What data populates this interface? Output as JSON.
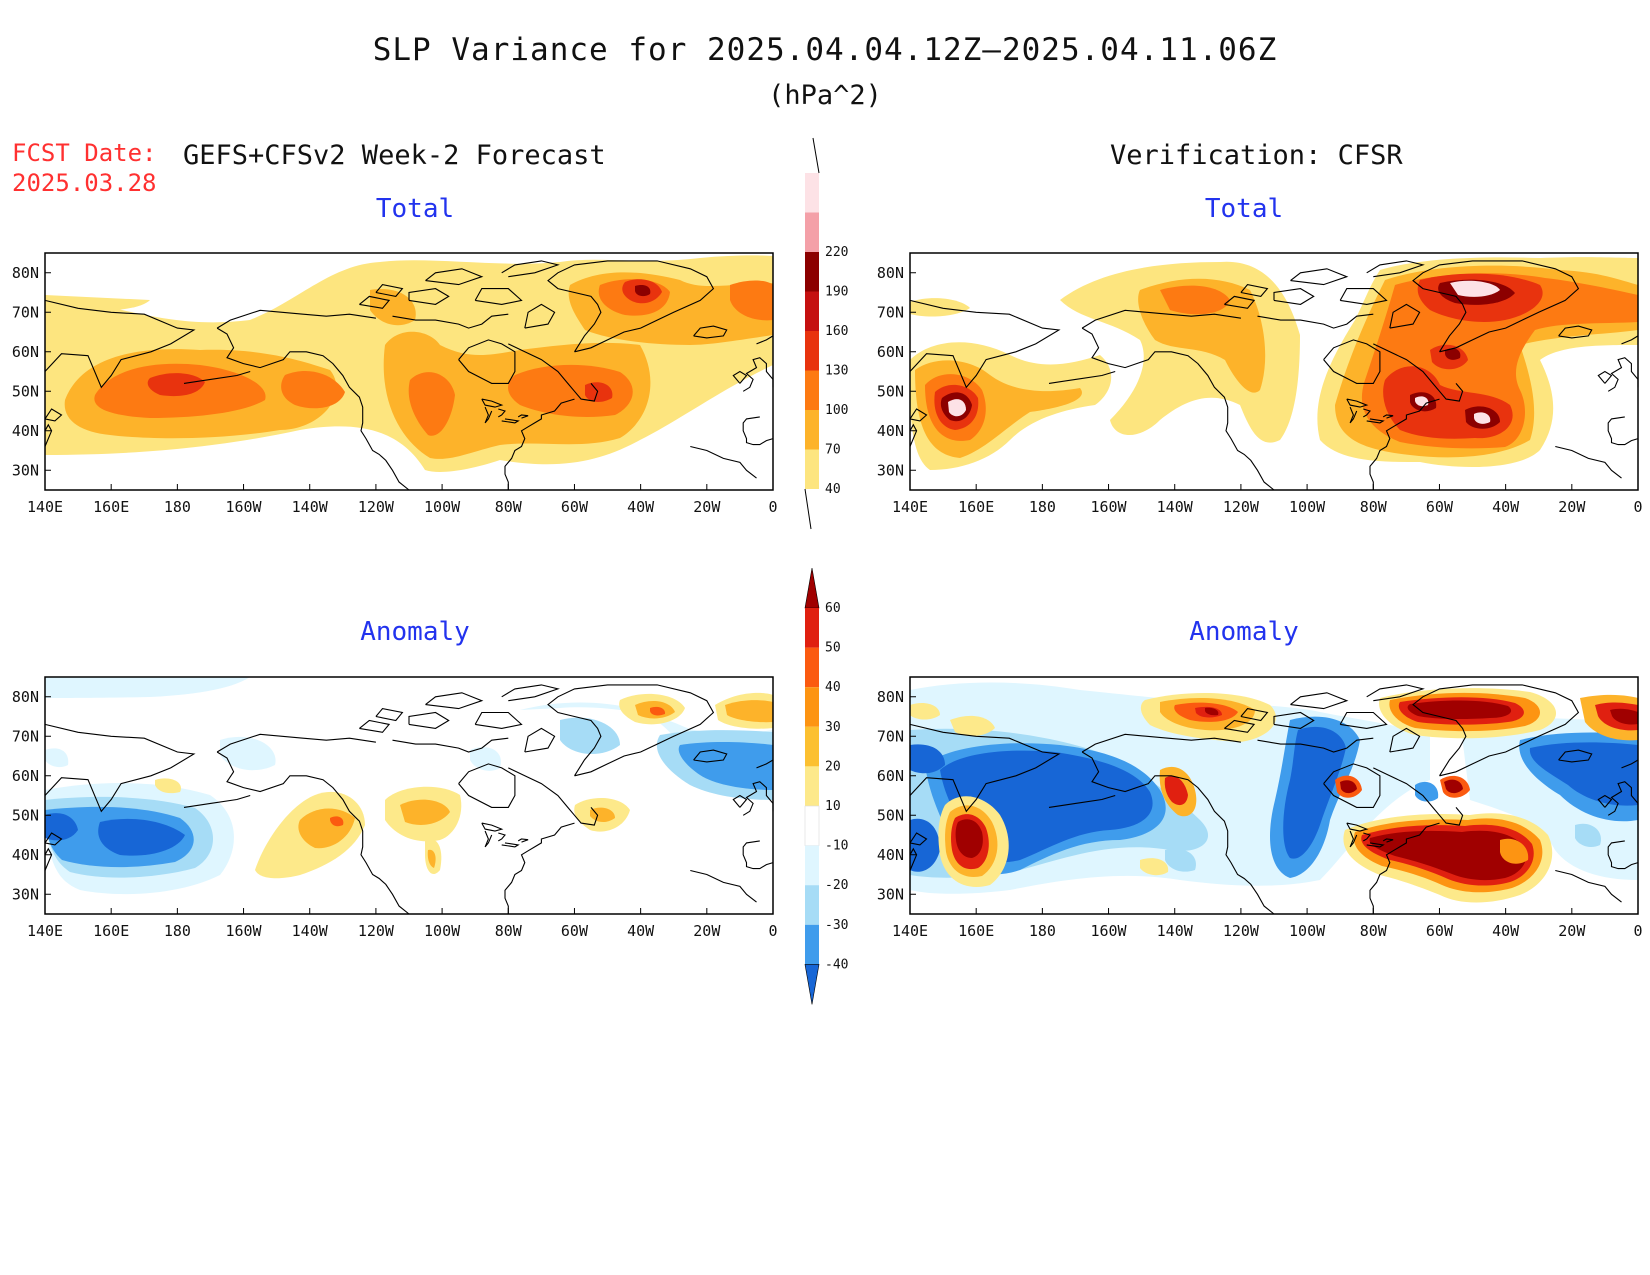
{
  "header": {
    "title": "SLP Variance for 2025.04.04.12Z–2025.04.11.06Z",
    "unit": "(hPa^2)",
    "fcst_label": "FCST Date:",
    "fcst_date": "2025.03.28",
    "left_heading": "GEFS+CFSv2 Week-2 Forecast",
    "right_heading": "Verification: CFSR"
  },
  "panels": {
    "fc_total": {
      "title": "Total"
    },
    "ver_total": {
      "title": "Total"
    },
    "fc_anom": {
      "title": "Anomaly"
    },
    "ver_anom": {
      "title": "Anomaly"
    }
  },
  "axes": {
    "lon_labels": [
      "140E",
      "160E",
      "180",
      "160W",
      "140W",
      "120W",
      "100W",
      "80W",
      "60W",
      "40W",
      "20W",
      "0"
    ],
    "lat_labels": [
      "80N",
      "70N",
      "60N",
      "50N",
      "40N",
      "30N"
    ]
  },
  "colorbars": {
    "total": {
      "levels": [
        "40",
        "70",
        "100",
        "130",
        "160",
        "190",
        "220"
      ],
      "colors": [
        "#fde57f",
        "#fdb32a",
        "#fd7a12",
        "#e8330e",
        "#c51010",
        "#8c0000",
        "#f4a0a8",
        "#fde2e6"
      ]
    },
    "anomaly": {
      "levels": [
        "60",
        "50",
        "40",
        "30",
        "20",
        "10",
        "-10",
        "-20",
        "-30",
        "-40"
      ],
      "colors": [
        "#a00000",
        "#e02010",
        "#fb5a10",
        "#fd9412",
        "#fcc030",
        "#fde98a",
        "#ffffff",
        "#dff6ff",
        "#a6dcf6",
        "#3f9cec",
        "#1766d6"
      ]
    }
  },
  "map_data": {
    "projection": "cylindrical equidistant",
    "lon_range": [
      "140E",
      "0"
    ],
    "lat_range": [
      "25N",
      "85N"
    ],
    "fc_total_blobs": [
      {
        "lon": -180,
        "lat": 53,
        "value": 120
      },
      {
        "lon": -145,
        "lat": 48,
        "value": 110
      },
      {
        "lon": -98,
        "lat": 48,
        "value": 110
      },
      {
        "lon": -55,
        "lat": 48,
        "value": 130
      },
      {
        "lon": -38,
        "lat": 75,
        "value": 175
      },
      {
        "lon": -10,
        "lat": 75,
        "value": 110
      }
    ],
    "ver_total_blobs": [
      {
        "lon": 158,
        "lat": 44,
        "value": 225
      },
      {
        "lon": -42,
        "lat": 77,
        "value": 225
      },
      {
        "lon": -55,
        "lat": 47,
        "value": 190
      },
      {
        "lon": -38,
        "lat": 45,
        "value": 225
      },
      {
        "lon": -45,
        "lat": 58,
        "value": 190
      },
      {
        "lon": -125,
        "lat": 52,
        "value": 100
      }
    ],
    "fc_anom_blobs": [
      {
        "lon": 172,
        "lat": 43,
        "value": -35
      },
      {
        "lon": -30,
        "lat": 62,
        "value": -30
      },
      {
        "lon": -138,
        "lat": 47,
        "value": 35
      },
      {
        "lon": -105,
        "lat": 50,
        "value": 25
      },
      {
        "lon": -32,
        "lat": 75,
        "value": 40
      },
      {
        "lon": -10,
        "lat": 73,
        "value": 30
      }
    ],
    "ver_anom_blobs": [
      {
        "lon": -170,
        "lat": 55,
        "value": -40
      },
      {
        "lon": -85,
        "lat": 50,
        "value": -40
      },
      {
        "lon": -20,
        "lat": 62,
        "value": -35
      },
      {
        "lon": 160,
        "lat": 42,
        "value": 60
      },
      {
        "lon": -40,
        "lat": 78,
        "value": 60
      },
      {
        "lon": -35,
        "lat": 42,
        "value": 65
      },
      {
        "lon": -60,
        "lat": 45,
        "value": 55
      },
      {
        "lon": -130,
        "lat": 75,
        "value": 40
      }
    ]
  }
}
